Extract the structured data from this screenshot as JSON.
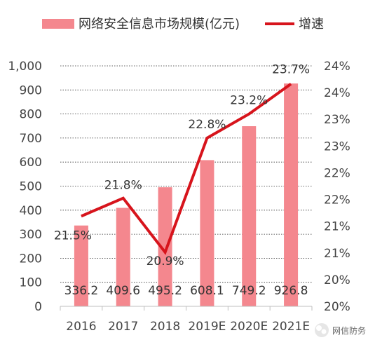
{
  "chart_data": {
    "type": "bar",
    "categories": [
      "2016",
      "2017",
      "2018",
      "2019E",
      "2020E",
      "2021E"
    ],
    "series": [
      {
        "name": "网络安全信息市场规模(亿元)",
        "type": "bar",
        "axis": "left",
        "values": [
          336.2,
          409.6,
          495.2,
          608.1,
          749.2,
          926.8
        ],
        "labels": [
          "336.2",
          "409.6",
          "495.2",
          "608.1",
          "749.2",
          "926.8"
        ],
        "color": "#f4878e"
      },
      {
        "name": "增速",
        "type": "line",
        "axis": "right",
        "values": [
          21.5,
          21.8,
          20.9,
          22.8,
          23.2,
          23.7
        ],
        "labels": [
          "21.5%",
          "21.8%",
          "20.9%",
          "22.8%",
          "23.2%",
          "23.7%"
        ],
        "color": "#d7141c"
      }
    ],
    "y_left": {
      "ylim": [
        0,
        1000
      ],
      "ticks": [
        "0",
        "100",
        "200",
        "300",
        "400",
        "500",
        "600",
        "700",
        "800",
        "900",
        "1,000"
      ]
    },
    "y_right": {
      "ylim": [
        20,
        24
      ],
      "ticks": [
        "20%",
        "20%",
        "21%",
        "21%",
        "22%",
        "22%",
        "23%",
        "23%",
        "24%",
        "24%"
      ]
    },
    "legend_position": "top",
    "grid": "horizontal dashed"
  },
  "watermark": {
    "text": "网信防务",
    "icon": "wechat-icon"
  }
}
